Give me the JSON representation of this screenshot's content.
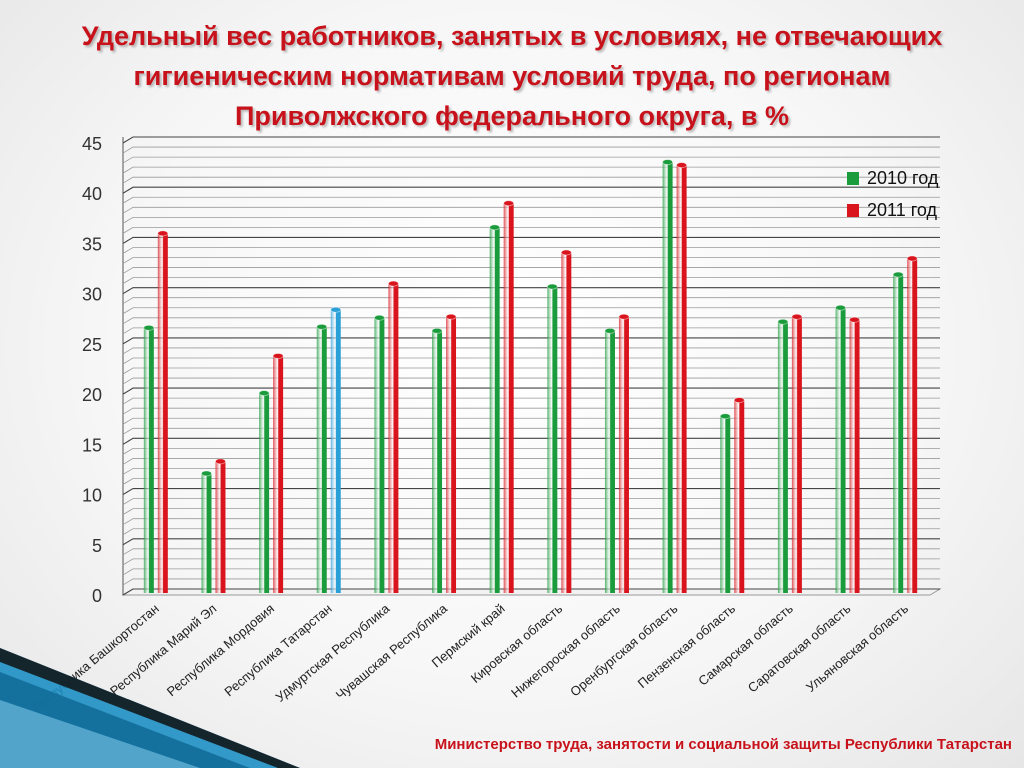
{
  "slide": {
    "title_lines": [
      "Удельный вес работников, занятых в условиях, не отвечающих",
      "гигиеническим нормативам условий труда, по регионам",
      "Приволжского федерального округа, в %"
    ],
    "footer": "Министерство труда, занятости и социальной защиты Республики Татарстан"
  },
  "colors": {
    "title": "#c8121b",
    "series_2010": "#1a9b3c",
    "series_2011": "#d9141c",
    "highlight_2011": "#2a9fd8",
    "grid": "#555555",
    "deco_blue": "#1e8fc4"
  },
  "chart_data": {
    "type": "bar",
    "title": "Удельный вес работников, занятых в условиях, не отвечающих гигиеническим нормативам условий труда, по регионам Приволжского федерального округа, в %",
    "xlabel": "",
    "ylabel": "",
    "ylim": [
      0,
      45
    ],
    "yticks": [
      0,
      5,
      10,
      15,
      20,
      25,
      30,
      35,
      40,
      45
    ],
    "grid": true,
    "legend_position": "top-right",
    "categories": [
      "Республика Башкортостан",
      "Республика Марий Эл",
      "Республика Мордовия",
      "Республика Татарстан",
      "Удмуртская Республика",
      "Чувашская Республика",
      "Пермский край",
      "Кировская область",
      "Нижегороская область",
      "Оренбургская область",
      "Пензенская область",
      "Самарская область",
      "Саратовская область",
      "Ульяновская область"
    ],
    "series": [
      {
        "name": "2010 год",
        "values": [
          26.6,
          12.1,
          20.1,
          26.7,
          27.6,
          26.3,
          36.6,
          30.7,
          26.3,
          43.1,
          17.8,
          27.2,
          28.6,
          31.9
        ]
      },
      {
        "name": "2011 год",
        "values": [
          36.0,
          13.3,
          23.8,
          28.4,
          31.0,
          27.7,
          39.0,
          34.1,
          27.7,
          42.8,
          19.4,
          27.7,
          27.4,
          33.5
        ]
      }
    ],
    "highlight_points": [
      {
        "series": 1,
        "category": 3,
        "color": "#2a9fd8"
      }
    ]
  }
}
